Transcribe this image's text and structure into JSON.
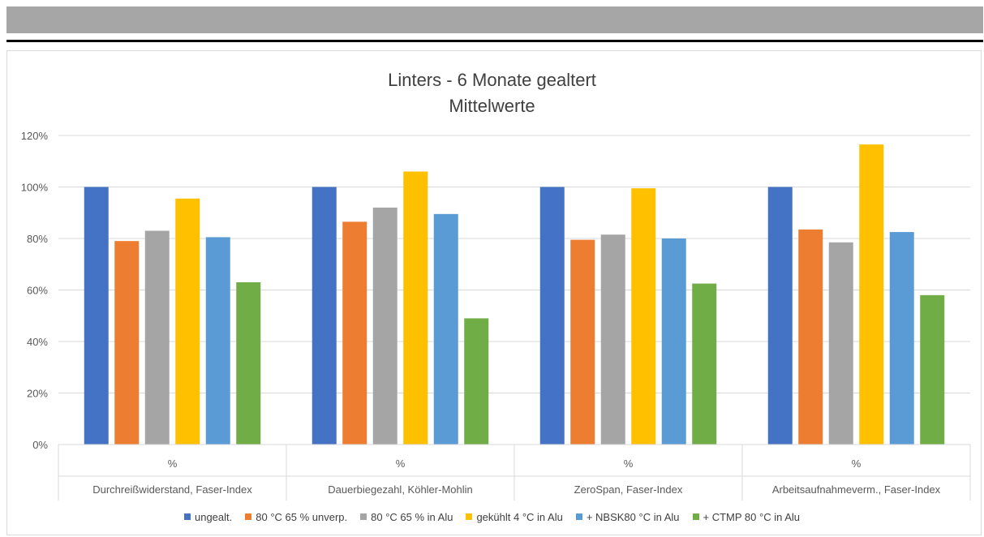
{
  "chart_data": {
    "type": "bar",
    "title": "Linters - 6 Monate gealtert",
    "subtitle": "Mittelwerte",
    "ylim": [
      0,
      1.2
    ],
    "yticks": [
      "0%",
      "20%",
      "40%",
      "60%",
      "80%",
      "100%",
      "120%"
    ],
    "grid": true,
    "legend_position": "bottom",
    "categories": [
      {
        "top": "%",
        "bottom": "Durchreißwiderstand, Faser-Index"
      },
      {
        "top": "%",
        "bottom": "Dauerbiegezahl, Köhler-Mohlin"
      },
      {
        "top": "%",
        "bottom": "ZeroSpan, Faser-Index"
      },
      {
        "top": "%",
        "bottom": "Arbeitsaufnahmeverm., Faser-Index"
      }
    ],
    "series": [
      {
        "name": "ungealt.",
        "color": "#4472c4",
        "values": [
          1.0,
          1.0,
          1.0,
          1.0
        ]
      },
      {
        "name": "80 °C 65 % unverp.",
        "color": "#ed7d31",
        "values": [
          0.79,
          0.865,
          0.795,
          0.835
        ]
      },
      {
        "name": "80 °C 65 % in Alu",
        "color": "#a5a5a5",
        "values": [
          0.83,
          0.92,
          0.815,
          0.785
        ]
      },
      {
        "name": "gekühlt 4 °C in Alu",
        "color": "#ffc000",
        "values": [
          0.955,
          1.06,
          0.995,
          1.165
        ]
      },
      {
        "name": "+ NBSK80 °C  in Alu",
        "color": "#5b9bd5",
        "values": [
          0.805,
          0.895,
          0.8,
          0.825
        ]
      },
      {
        "name": "+ CTMP 80 °C in Alu",
        "color": "#70ad47",
        "values": [
          0.63,
          0.49,
          0.625,
          0.58
        ]
      }
    ]
  }
}
